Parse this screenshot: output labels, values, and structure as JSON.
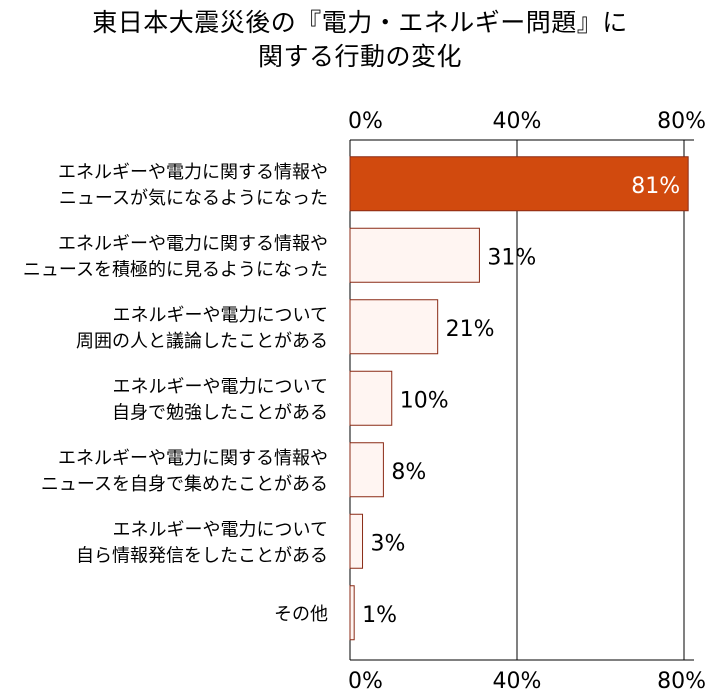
{
  "chart_data": {
    "type": "bar",
    "orientation": "horizontal",
    "title_lines": [
      "東日本大震災後の『電力・エネルギー問題』に",
      "関する行動の変化"
    ],
    "categories": [
      [
        "エネルギーや電力に関する情報や",
        "ニュースが気になるようになった"
      ],
      [
        "エネルギーや電力に関する情報や",
        "ニュースを積極的に見るようになった"
      ],
      [
        "エネルギーや電力について",
        "周囲の人と議論したことがある"
      ],
      [
        "エネルギーや電力について",
        "自身で勉強したことがある"
      ],
      [
        "エネルギーや電力に関する情報や",
        "ニュースを自身で集めたことがある"
      ],
      [
        "エネルギーや電力について",
        "自ら情報発信をしたことがある"
      ],
      [
        "その他"
      ]
    ],
    "values": [
      81,
      31,
      21,
      10,
      8,
      3,
      1
    ],
    "value_labels": [
      "81%",
      "31%",
      "21%",
      "10%",
      "8%",
      "3%",
      "1%"
    ],
    "xlim": [
      0,
      80
    ],
    "ticks": [
      0,
      40,
      80
    ],
    "tick_labels": [
      "0%",
      "40%",
      "80%"
    ],
    "axis_position": "top and bottom",
    "grid": "vertical lines at ticks",
    "colors": {
      "highlight_bar": "#D14A0E",
      "bar_fill": "#FFF5F2",
      "bar_stroke": "#8A2A15",
      "grid": "#000000"
    }
  }
}
